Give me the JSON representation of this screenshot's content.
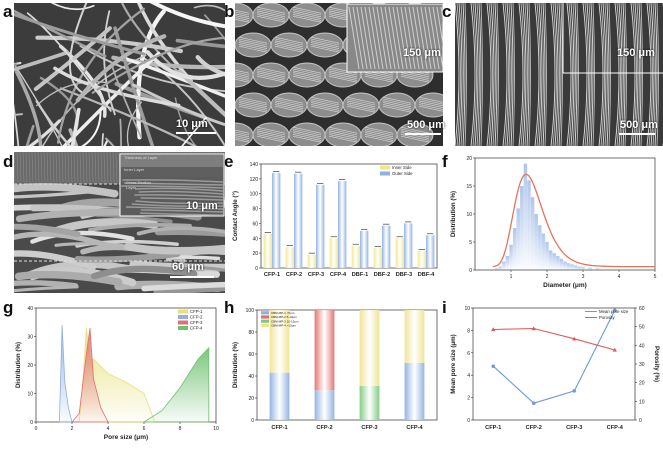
{
  "panels": {
    "a": {
      "label": "a",
      "scale": "10 μm"
    },
    "b": {
      "label": "b",
      "scale": "500 μm",
      "inset_scale": "150 μm"
    },
    "c": {
      "label": "c",
      "scale": "500 μm",
      "inset_scale": "150 μm"
    },
    "d": {
      "label": "d",
      "scale": "60 μm",
      "inset_scale": "10 μm",
      "inset_layers": [
        "Thickness of Layer",
        "Inner Layer",
        "Cross Section Layer"
      ]
    },
    "e": {
      "label": "e"
    },
    "f": {
      "label": "f"
    },
    "g": {
      "label": "g"
    },
    "h": {
      "label": "h"
    },
    "i": {
      "label": "i"
    }
  },
  "chart_data": [
    {
      "id": "e",
      "type": "bar",
      "title": "",
      "ylabel": "Contact Angle (°)",
      "xlabel": "",
      "ylim": [
        0,
        140
      ],
      "yticks": [
        0,
        20,
        40,
        60,
        80,
        100,
        120,
        140
      ],
      "categories": [
        "CFP-1",
        "CFP-2",
        "CFP-3",
        "CFP-4",
        "DBF-1",
        "DBF-2",
        "DBF-3",
        "DBF-4"
      ],
      "legend": "top-right",
      "series": [
        {
          "name": "Inner Side",
          "color": "#f0e68c",
          "values": [
            46,
            28,
            18,
            40,
            30,
            27,
            40,
            23
          ]
        },
        {
          "name": "Outer Side",
          "color": "#8fb0e0",
          "values": [
            128,
            127,
            112,
            117,
            50,
            57,
            60,
            44
          ]
        }
      ]
    },
    {
      "id": "f",
      "type": "bar",
      "ylabel": "Distribution (%)",
      "xlabel": "Diameter (μm)",
      "xlim": [
        0,
        5
      ],
      "xticks": [
        1,
        2,
        3,
        4,
        5
      ],
      "ylim": [
        0,
        20
      ],
      "yticks": [
        0,
        5,
        10,
        15,
        20
      ],
      "bins": [
        0.6,
        0.7,
        0.8,
        0.9,
        1.0,
        1.1,
        1.2,
        1.3,
        1.4,
        1.5,
        1.6,
        1.7,
        1.8,
        1.9,
        2.0,
        2.1,
        2.2,
        2.3,
        2.4,
        2.5,
        2.6,
        2.7,
        2.8,
        2.9,
        3.0,
        3.2,
        3.4
      ],
      "values": [
        0.3,
        0.6,
        1.5,
        2.5,
        4.5,
        7.5,
        11,
        15,
        19,
        16,
        13,
        10,
        8,
        6.5,
        5,
        3.5,
        3,
        2.5,
        2,
        1.5,
        1.2,
        1,
        0.8,
        0.6,
        0.5,
        0.4,
        0.3
      ],
      "fit_color": "#e8735a",
      "bar_color": "#a7c0e8"
    },
    {
      "id": "g",
      "type": "area",
      "ylabel": "Distribution (%)",
      "xlabel": "Pore size (μm)",
      "xlim": [
        0,
        10
      ],
      "xticks": [
        0,
        2,
        4,
        6,
        8,
        10
      ],
      "ylim": [
        0,
        40
      ],
      "yticks": [
        0,
        10,
        20,
        30,
        40
      ],
      "legend": "top-right",
      "series": [
        {
          "name": "CFP-1",
          "color": "#e8e07a",
          "x": [
            2.4,
            2.6,
            2.8,
            3.0,
            3.2,
            4.0,
            5.0,
            6.0,
            6.6
          ],
          "y": [
            0,
            14,
            33,
            22,
            22,
            17,
            14,
            10,
            0
          ]
        },
        {
          "name": "CFP-2",
          "color": "#8fb0e0",
          "x": [
            1.3,
            1.45,
            1.6,
            1.8,
            2.0
          ],
          "y": [
            0,
            34,
            14,
            5,
            0
          ]
        },
        {
          "name": "CFP-3",
          "color": "#e07070",
          "x": [
            2.0,
            2.4,
            2.8,
            3.0,
            3.2,
            3.6,
            4.0
          ],
          "y": [
            0,
            3,
            24,
            33,
            15,
            5,
            0
          ]
        },
        {
          "name": "CFP-4",
          "color": "#70c070",
          "x": [
            6.0,
            7.0,
            8.0,
            9.0,
            9.6
          ],
          "y": [
            0,
            4,
            12,
            22,
            26
          ]
        }
      ]
    },
    {
      "id": "h",
      "type": "bar",
      "ylabel": "Distribution (%)",
      "xlabel": "",
      "ylim": [
        0,
        100
      ],
      "yticks": [
        0,
        20,
        40,
        60,
        80,
        100
      ],
      "categories": [
        "CFP-1",
        "CFP-2",
        "CFP-3",
        "CFP-4"
      ],
      "legend": "top-left",
      "series": [
        {
          "name": "CBM-MP-1 <5μm",
          "color": "#8fb0e0",
          "values": [
            43,
            27,
            0,
            52
          ]
        },
        {
          "name": "CBM-MP-2 5-10μm",
          "color": "#e07070",
          "values": [
            0,
            73,
            0,
            0
          ]
        },
        {
          "name": "CBM-MP-3 10-15μm",
          "color": "#80c880",
          "values": [
            0,
            0,
            31,
            0
          ]
        },
        {
          "name": "CBM-MP-4 >15μm",
          "color": "#eee490",
          "values": [
            57,
            0,
            69,
            48
          ]
        }
      ]
    },
    {
      "id": "i",
      "type": "line",
      "ylabel": "Mean pore size (μm)",
      "y2label": "Porosity (%)",
      "xlabel": "",
      "categories": [
        "CFP-1",
        "CFP-2",
        "CFP-3",
        "CFP-4"
      ],
      "ylim": [
        0,
        10
      ],
      "yticks": [
        0,
        2,
        4,
        6,
        8,
        10
      ],
      "y2lim": [
        0,
        60
      ],
      "y2ticks": [
        0,
        10,
        20,
        30,
        40,
        50,
        60
      ],
      "legend": "top-right",
      "series": [
        {
          "name": "Mean pore size",
          "color": "#6f9bd8",
          "axis": "left",
          "values": [
            4.8,
            1.5,
            2.6,
            9.8
          ]
        },
        {
          "name": "Porosity",
          "color": "#e05a5a",
          "axis": "right",
          "values": [
            48.5,
            49,
            43.5,
            37.5
          ]
        }
      ]
    }
  ]
}
